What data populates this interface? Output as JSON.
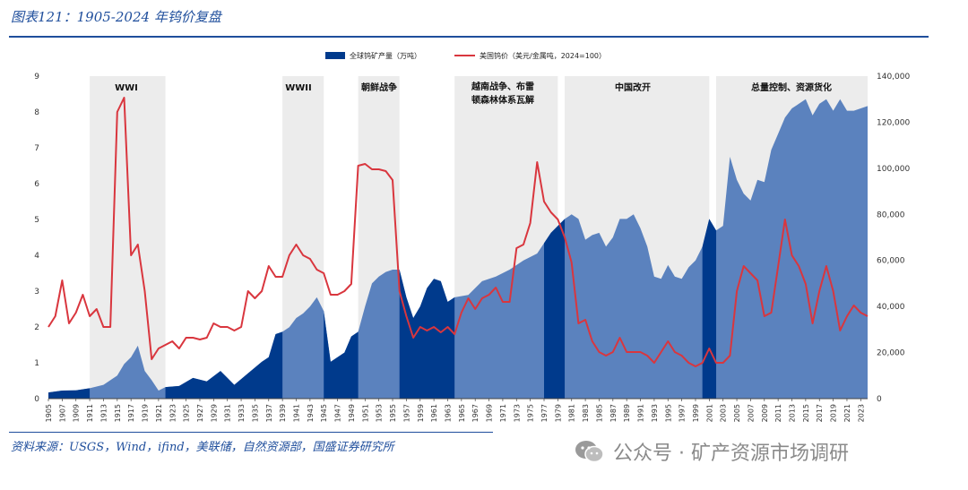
{
  "header": {
    "title": "图表121：1905-2024 年钨价复盘"
  },
  "footer": {
    "source": "资料来源：USGS，Wind，ifind，美联储，自然资源部，国盛证券研究所"
  },
  "watermark": {
    "text": "公众号 · 矿产资源市场调研",
    "icon": "wechat-icon"
  },
  "colors": {
    "area_light": "#5b82be",
    "area_dark": "#003a8c",
    "line": "#d9363e",
    "shade": "#ececec",
    "accent": "#1f4e9c"
  },
  "chart_data": {
    "type": "area",
    "title": "",
    "xlabel": "",
    "ylabel": "",
    "y2label": "",
    "xlim": [
      1905,
      2024
    ],
    "ylim": [
      0,
      9
    ],
    "y2lim": [
      0,
      140000
    ],
    "yticks": [
      "0",
      "1",
      "2",
      "3",
      "4",
      "5",
      "6",
      "7",
      "8",
      "9"
    ],
    "y2ticks": [
      "0",
      "20,000",
      "40,000",
      "60,000",
      "80,000",
      "100,000",
      "120,000",
      "140,000"
    ],
    "grid": false,
    "legend_position": "top-center",
    "legend": [
      {
        "label": "全球钨矿产量（万吨）",
        "kind": "area"
      },
      {
        "label": "美国钨价（美元/金属吨，2024=100）",
        "kind": "line"
      }
    ],
    "eras": [
      {
        "label": "WWI",
        "start": 1911,
        "end": 1922
      },
      {
        "label": "WWII",
        "start": 1939,
        "end": 1945
      },
      {
        "label": "朝鲜战争",
        "start": 1950,
        "end": 1956
      },
      {
        "label": "越南战争、布雷顿森林体系瓦解",
        "start": 1964,
        "end": 1979
      },
      {
        "label": "中国改开",
        "start": 1980,
        "end": 2001
      },
      {
        "label": "总量控制、资源货化",
        "start": 2002,
        "end": 2024
      }
    ],
    "dark_periods": [
      [
        1905,
        1911
      ],
      [
        1922,
        1939
      ],
      [
        1945,
        1950
      ],
      [
        1956,
        1964
      ],
      [
        1977,
        1980
      ],
      [
        2000,
        2002
      ]
    ],
    "series": [
      {
        "name": "全球钨矿产量（万吨）",
        "axis": "right",
        "x": [
          1905,
          1907,
          1909,
          1911,
          1913,
          1915,
          1916,
          1917,
          1918,
          1919,
          1920,
          1921,
          1922,
          1924,
          1926,
          1928,
          1930,
          1932,
          1934,
          1936,
          1937,
          1938,
          1939,
          1940,
          1941,
          1942,
          1943,
          1944,
          1945,
          1946,
          1948,
          1949,
          1950,
          1951,
          1952,
          1953,
          1954,
          1955,
          1956,
          1957,
          1958,
          1959,
          1960,
          1961,
          1962,
          1963,
          1964,
          1966,
          1968,
          1970,
          1972,
          1974,
          1976,
          1978,
          1979,
          1980,
          1981,
          1982,
          1983,
          1984,
          1985,
          1986,
          1987,
          1988,
          1989,
          1990,
          1991,
          1992,
          1993,
          1994,
          1995,
          1996,
          1997,
          1998,
          1999,
          2000,
          2001,
          2002,
          2003,
          2004,
          2005,
          2006,
          2007,
          2008,
          2009,
          2010,
          2011,
          2012,
          2013,
          2014,
          2015,
          2016,
          2017,
          2018,
          2019,
          2020,
          2021,
          2022,
          2023,
          2024
        ],
        "values": [
          2700,
          3500,
          3600,
          4500,
          6000,
          10000,
          15000,
          18000,
          23000,
          12000,
          8000,
          3500,
          5000,
          5500,
          9000,
          7500,
          12000,
          6000,
          11000,
          16000,
          18000,
          28000,
          29000,
          31000,
          35000,
          37000,
          40000,
          44000,
          38000,
          16000,
          20000,
          27000,
          29000,
          40000,
          50000,
          53000,
          55000,
          56000,
          56000,
          44000,
          35000,
          40000,
          48000,
          52000,
          51000,
          42000,
          44000,
          45000,
          51000,
          53000,
          56000,
          60000,
          63000,
          72000,
          75000,
          78000,
          80000,
          78000,
          69000,
          71000,
          72000,
          66000,
          70000,
          78000,
          78000,
          80000,
          74000,
          66000,
          53000,
          52000,
          58000,
          53000,
          52000,
          57000,
          60000,
          66000,
          78000,
          73000,
          75000,
          105000,
          95000,
          89000,
          86000,
          95000,
          94000,
          108000,
          115000,
          122000,
          126000,
          128000,
          130000,
          123000,
          128000,
          130000,
          125000,
          130000,
          125000,
          125000,
          126000,
          127000
        ]
      },
      {
        "name": "美国钨价（美元/金属吨，2024=100）",
        "axis": "left",
        "x": [
          1905,
          1906,
          1907,
          1908,
          1909,
          1910,
          1911,
          1912,
          1913,
          1914,
          1915,
          1916,
          1917,
          1918,
          1919,
          1920,
          1921,
          1922,
          1923,
          1924,
          1925,
          1926,
          1927,
          1928,
          1929,
          1930,
          1931,
          1932,
          1933,
          1934,
          1935,
          1936,
          1937,
          1938,
          1939,
          1940,
          1941,
          1942,
          1943,
          1944,
          1945,
          1946,
          1947,
          1948,
          1949,
          1950,
          1951,
          1952,
          1953,
          1954,
          1955,
          1956,
          1957,
          1958,
          1959,
          1960,
          1961,
          1962,
          1963,
          1964,
          1965,
          1966,
          1967,
          1968,
          1969,
          1970,
          1971,
          1972,
          1973,
          1974,
          1975,
          1976,
          1977,
          1978,
          1979,
          1980,
          1981,
          1982,
          1983,
          1984,
          1985,
          1986,
          1987,
          1988,
          1989,
          1990,
          1991,
          1992,
          1993,
          1994,
          1995,
          1996,
          1997,
          1998,
          1999,
          2000,
          2001,
          2002,
          2003,
          2004,
          2005,
          2006,
          2007,
          2008,
          2009,
          2010,
          2011,
          2012,
          2013,
          2014,
          2015,
          2016,
          2017,
          2018,
          2019,
          2020,
          2021,
          2022,
          2023,
          2024
        ],
        "values": [
          2.0,
          2.3,
          3.3,
          2.1,
          2.4,
          2.9,
          2.3,
          2.5,
          2.0,
          2.0,
          8.0,
          8.4,
          4.0,
          4.3,
          3.0,
          1.1,
          1.4,
          1.5,
          1.6,
          1.4,
          1.7,
          1.7,
          1.65,
          1.7,
          2.1,
          2.0,
          2.0,
          1.9,
          2.0,
          3.0,
          2.8,
          3.0,
          3.7,
          3.4,
          3.4,
          4.0,
          4.3,
          4.0,
          3.9,
          3.6,
          3.5,
          2.9,
          2.9,
          3.0,
          3.2,
          6.5,
          6.55,
          6.4,
          6.4,
          6.35,
          6.1,
          3.0,
          2.3,
          1.7,
          2.0,
          1.9,
          2.0,
          1.85,
          2.0,
          1.8,
          2.4,
          2.8,
          2.5,
          2.8,
          2.9,
          3.1,
          2.7,
          2.7,
          4.2,
          4.3,
          4.9,
          6.6,
          5.5,
          5.2,
          5.0,
          4.5,
          3.8,
          2.1,
          2.2,
          1.6,
          1.3,
          1.2,
          1.3,
          1.7,
          1.3,
          1.3,
          1.3,
          1.2,
          1.0,
          1.3,
          1.6,
          1.3,
          1.2,
          1.0,
          0.9,
          1.0,
          1.4,
          1.0,
          1.0,
          1.2,
          3.0,
          3.7,
          3.5,
          3.3,
          2.3,
          2.4,
          3.7,
          5.0,
          4.0,
          3.7,
          3.2,
          2.1,
          3.0,
          3.7,
          3.0,
          1.9,
          2.3,
          2.6,
          2.4,
          2.3
        ]
      }
    ],
    "x_tick_labels": [
      "1905",
      "1907",
      "1909",
      "1911",
      "1913",
      "1915",
      "1917",
      "1919",
      "1921",
      "1923",
      "1925",
      "1927",
      "1929",
      "1931",
      "1933",
      "1935",
      "1937",
      "1939",
      "1941",
      "1943",
      "1945",
      "1947",
      "1949",
      "1951",
      "1953",
      "1955",
      "1957",
      "1959",
      "1961",
      "1963",
      "1965",
      "1967",
      "1969",
      "1971",
      "1973",
      "1975",
      "1977",
      "1979",
      "1981",
      "1983",
      "1985",
      "1987",
      "1989",
      "1991",
      "1993",
      "1995",
      "1997",
      "1999",
      "2001",
      "2003",
      "2005",
      "2007",
      "2009",
      "2011",
      "2013",
      "2015",
      "2017",
      "2019",
      "2021",
      "2023"
    ]
  }
}
